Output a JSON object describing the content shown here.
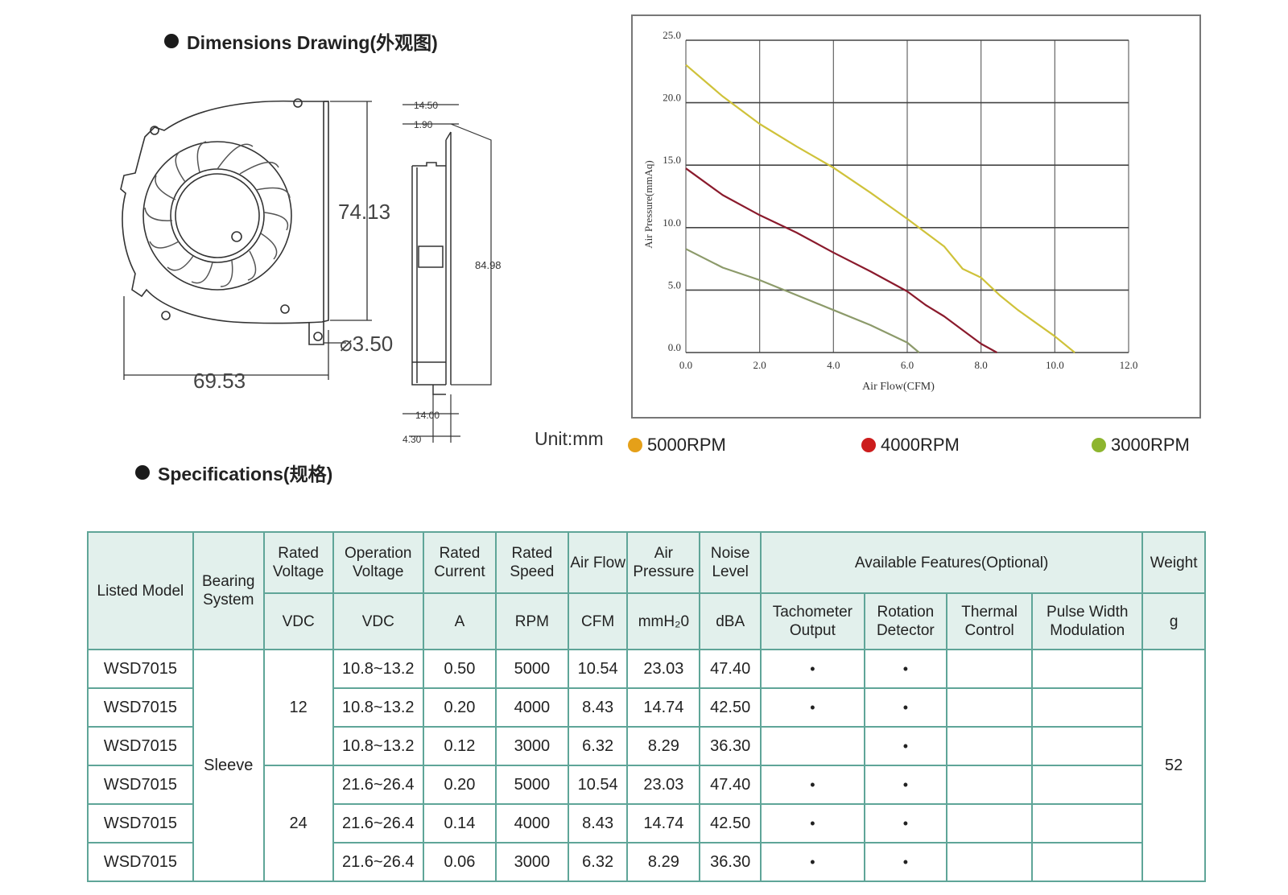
{
  "headings": {
    "dimensions": "Dimensions Drawing(外观图)",
    "specifications": "Specifications(规格)"
  },
  "drawing": {
    "height": "74.13",
    "width": "69.53",
    "hole": "⌀3.50",
    "side_height": "84.98",
    "side_top": "14.50",
    "side_tab": "1.90",
    "side_bottom": "14.00",
    "side_bottom_tab": "4.30",
    "unit": "Unit:mm"
  },
  "chart_data": {
    "type": "line",
    "xlabel": "Air Flow(CFM)",
    "ylabel": "Air Pressure(mmAq)",
    "xlim": [
      0,
      12
    ],
    "ylim": [
      0,
      25
    ],
    "x_ticks": [
      "0.0",
      "2.0",
      "4.0",
      "6.0",
      "8.0",
      "10.0",
      "12.0"
    ],
    "y_ticks": [
      "0.0",
      "5.0",
      "10.0",
      "15.0",
      "20.0",
      "25.0"
    ],
    "grid": true,
    "legend_position": "bottom",
    "series": [
      {
        "name": "5000RPM",
        "color": "#e5a019",
        "line_color": "#cfc23a",
        "x": [
          0,
          1,
          2,
          3,
          4,
          5,
          6,
          7,
          7.5,
          8,
          8.5,
          9,
          10,
          10.54
        ],
        "y": [
          23.03,
          20.5,
          18.3,
          16.5,
          14.8,
          12.8,
          10.7,
          8.5,
          6.7,
          6.0,
          4.6,
          3.4,
          1.3,
          0
        ]
      },
      {
        "name": "4000RPM",
        "color": "#cc1d1d",
        "line_color": "#8a1a2c",
        "x": [
          0,
          1,
          2,
          3,
          4,
          5,
          6,
          6.5,
          7,
          7.5,
          8,
          8.43
        ],
        "y": [
          14.74,
          12.6,
          11.0,
          9.6,
          8.0,
          6.5,
          4.9,
          3.8,
          2.9,
          1.8,
          0.7,
          0
        ]
      },
      {
        "name": "3000RPM",
        "color": "#8db52e",
        "line_color": "#8c9a6a",
        "x": [
          0,
          1,
          2,
          3,
          4,
          5,
          6,
          6.32
        ],
        "y": [
          8.29,
          6.8,
          5.8,
          4.6,
          3.4,
          2.2,
          0.8,
          0
        ]
      }
    ]
  },
  "table": {
    "headers": {
      "listed_model": "Listed Model",
      "bearing_system": "Bearing System",
      "rated_voltage": "Rated Voltage",
      "operation_voltage": "Operation Voltage",
      "rated_current": "Rated Current",
      "rated_speed": "Rated Speed",
      "air_flow": "Air Flow",
      "air_pressure": "Air Pressure",
      "noise_level": "Noise Level",
      "available_features": "Available Features(Optional)",
      "weight": "Weight",
      "tachometer": "Tachometer Output",
      "rotation": "Rotation Detector",
      "thermal": "Thermal Control",
      "pwm": "Pulse Width Modulation"
    },
    "units": {
      "rated_voltage": "VDC",
      "operation_voltage": "VDC",
      "rated_current": "A",
      "rated_speed": "RPM",
      "air_flow": "CFM",
      "air_pressure": "mmH₂0",
      "noise_level": "dBA",
      "weight": "g"
    },
    "bearing": "Sleeve",
    "weight": "52",
    "voltage_groups": [
      "12",
      "24"
    ],
    "dot": "•",
    "rows": [
      {
        "model": "WSD7015",
        "op_voltage": "10.8~13.2",
        "current": "0.50",
        "speed": "5000",
        "flow": "10.54",
        "pressure": "23.03",
        "noise": "47.40",
        "tacho": "•",
        "rotation": "•",
        "thermal": "",
        "pwm": ""
      },
      {
        "model": "WSD7015",
        "op_voltage": "10.8~13.2",
        "current": "0.20",
        "speed": "4000",
        "flow": "8.43",
        "pressure": "14.74",
        "noise": "42.50",
        "tacho": "•",
        "rotation": "•",
        "thermal": "",
        "pwm": ""
      },
      {
        "model": "WSD7015",
        "op_voltage": "10.8~13.2",
        "current": "0.12",
        "speed": "3000",
        "flow": "6.32",
        "pressure": "8.29",
        "noise": "36.30",
        "tacho": "",
        "rotation": "•",
        "thermal": "",
        "pwm": ""
      },
      {
        "model": "WSD7015",
        "op_voltage": "21.6~26.4",
        "current": "0.20",
        "speed": "5000",
        "flow": "10.54",
        "pressure": "23.03",
        "noise": "47.40",
        "tacho": "•",
        "rotation": "•",
        "thermal": "",
        "pwm": ""
      },
      {
        "model": "WSD7015",
        "op_voltage": "21.6~26.4",
        "current": "0.14",
        "speed": "4000",
        "flow": "8.43",
        "pressure": "14.74",
        "noise": "42.50",
        "tacho": "•",
        "rotation": "•",
        "thermal": "",
        "pwm": ""
      },
      {
        "model": "WSD7015",
        "op_voltage": "21.6~26.4",
        "current": "0.06",
        "speed": "3000",
        "flow": "6.32",
        "pressure": "8.29",
        "noise": "36.30",
        "tacho": "•",
        "rotation": "•",
        "thermal": "",
        "pwm": ""
      }
    ]
  }
}
